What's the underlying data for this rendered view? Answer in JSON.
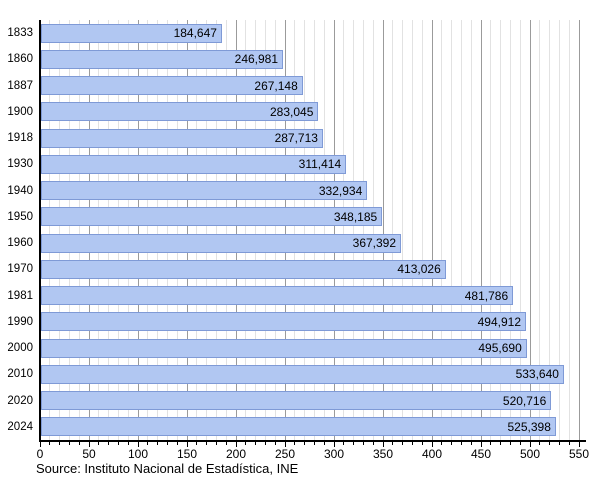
{
  "chart": {
    "source": "Source: Instituto Nacional de Estadística, INE"
  },
  "chart_data": {
    "type": "bar",
    "orientation": "horizontal",
    "title": "",
    "xlabel": "",
    "ylabel": "",
    "categories": [
      "1833",
      "1860",
      "1887",
      "1900",
      "1918",
      "1930",
      "1940",
      "1950",
      "1960",
      "1970",
      "1981",
      "1990",
      "2000",
      "2010",
      "2020",
      "2024"
    ],
    "values": [
      184647,
      246981,
      267148,
      283045,
      287713,
      311414,
      332934,
      348185,
      367392,
      413026,
      481786,
      494912,
      495690,
      533640,
      520716,
      525398
    ],
    "value_labels": [
      "184,647",
      "246,981",
      "267,148",
      "283,045",
      "287,713",
      "311,414",
      "332,934",
      "348,185",
      "367,392",
      "413,026",
      "481,786",
      "494,912",
      "495,690",
      "533,640",
      "520,716",
      "525,398"
    ],
    "axis_unit_divisor": 1000,
    "xlim": [
      0,
      550
    ],
    "x_major_tick": 50,
    "x_minor_tick": 10,
    "x_tick_labels": [
      "0",
      "50",
      "100",
      "150",
      "200",
      "250",
      "300",
      "350",
      "400",
      "450",
      "500",
      "550"
    ],
    "grid": true,
    "legend": "none",
    "colors": {
      "bar_fill": "#b1c7f2",
      "bar_border": "#7f9ad6",
      "grid_minor": "#e2e2e2",
      "grid_major": "#9b9b9b",
      "axis": "#000000",
      "text": "#000000",
      "background": "#ffffff"
    }
  }
}
